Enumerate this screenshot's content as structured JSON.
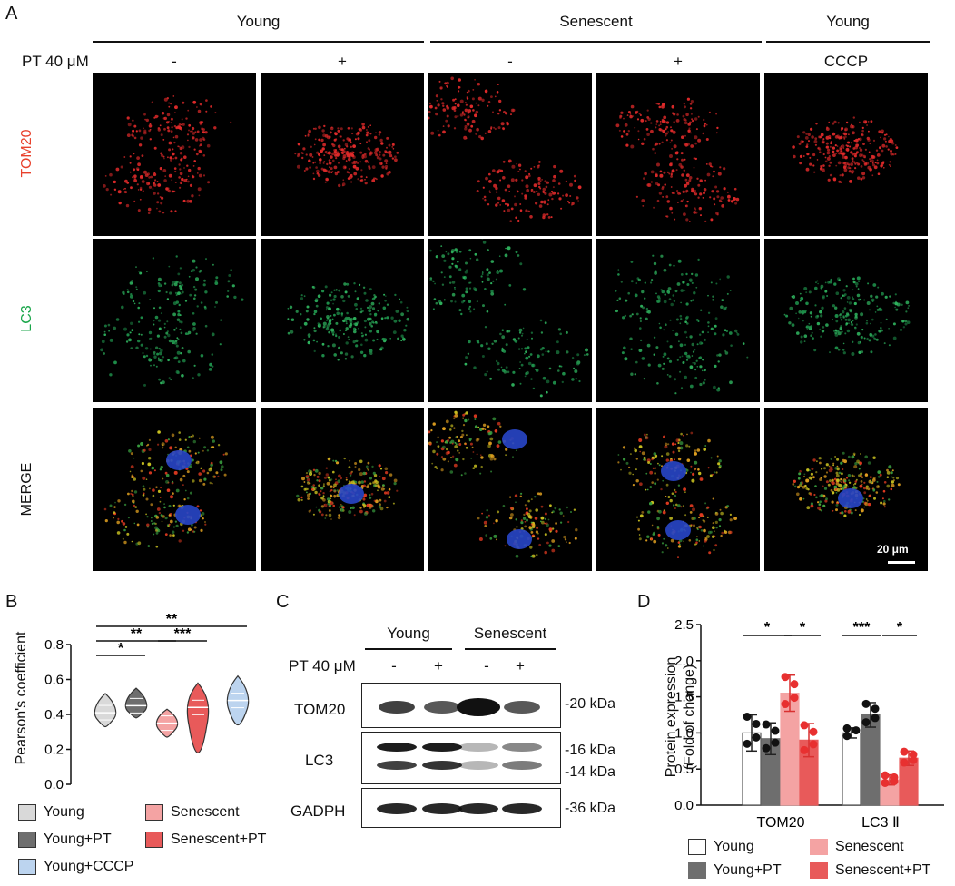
{
  "panelA": {
    "label": "A",
    "groups": [
      {
        "title": "Young"
      },
      {
        "title": "Senescent"
      },
      {
        "title": "Young"
      }
    ],
    "treatment_label": "PT 40 μM",
    "col_marks": [
      "-",
      "+",
      "-",
      "+",
      "CCCP"
    ],
    "row_labels": [
      {
        "text": "TOM20",
        "color": "#e8412c"
      },
      {
        "text": "LC3",
        "color": "#1aa64a"
      },
      {
        "text": "MERGE",
        "color": "#111111"
      }
    ],
    "scale_bar": "20 μm"
  },
  "panelB": {
    "label": "B",
    "ylabel": "Pearson's coefficient",
    "sig": [
      "*",
      "**",
      "***",
      "**"
    ],
    "legend": [
      {
        "name": "Young",
        "color": "#d9d9d9"
      },
      {
        "name": "Senescent",
        "color": "#f4a3a3"
      },
      {
        "name": "Young+PT",
        "color": "#6e6e6e"
      },
      {
        "name": "Senescent+PT",
        "color": "#e85a5a"
      },
      {
        "name": "Young+CCCP",
        "color": "#bcd4ef"
      }
    ]
  },
  "panelC": {
    "label": "C",
    "groups": [
      "Young",
      "Senescent"
    ],
    "treatment_label": "PT 40 μM",
    "lane_marks": [
      "-",
      "+",
      "-",
      "+"
    ],
    "rows": [
      "TOM20",
      "LC3",
      "GADPH"
    ],
    "markers": [
      "-20 kDa",
      "-16 kDa",
      "-14 kDa",
      "-36 kDa"
    ]
  },
  "panelD": {
    "label": "D",
    "ylabel_line1": "Protein expression",
    "ylabel_line2": "(Fold of change)",
    "categories": [
      "TOM20",
      "LC3 Ⅱ"
    ],
    "sig": [
      "*",
      "*",
      "***",
      "*"
    ],
    "legend": [
      {
        "name": "Young",
        "color": "#ffffff"
      },
      {
        "name": "Senescent",
        "color": "#f4a3a3"
      },
      {
        "name": "Young+PT",
        "color": "#6e6e6e"
      },
      {
        "name": "Senescent+PT",
        "color": "#e85a5a"
      }
    ]
  },
  "chart_data": [
    {
      "type": "violin",
      "panel": "B",
      "ylabel": "Pearson's coefficient",
      "ylim": [
        0.0,
        0.8
      ],
      "yticks": [
        "0.0",
        "0.2",
        "0.4",
        "0.6",
        "0.8"
      ],
      "series": [
        {
          "name": "Young",
          "median": 0.41,
          "min": 0.33,
          "max": 0.52,
          "color": "#d9d9d9"
        },
        {
          "name": "Young+PT",
          "median": 0.45,
          "min": 0.38,
          "max": 0.55,
          "color": "#6e6e6e"
        },
        {
          "name": "Senescent",
          "median": 0.35,
          "min": 0.27,
          "max": 0.43,
          "color": "#f4a3a3"
        },
        {
          "name": "Senescent+PT",
          "median": 0.44,
          "min": 0.18,
          "max": 0.58,
          "color": "#e85a5a"
        },
        {
          "name": "Young+CCCP",
          "median": 0.48,
          "min": 0.34,
          "max": 0.62,
          "color": "#bcd4ef"
        }
      ]
    },
    {
      "type": "bar",
      "panel": "D",
      "categories": [
        "TOM20",
        "LC3 Ⅱ"
      ],
      "ylim": [
        0.0,
        2.5
      ],
      "yticks": [
        "0.0",
        "0.5",
        "1.0",
        "1.5",
        "2.0",
        "2.5"
      ],
      "series": [
        {
          "name": "Young",
          "values": [
            1.0,
            1.0
          ],
          "errors": [
            0.25,
            0.07
          ],
          "color": "#ffffff"
        },
        {
          "name": "Young+PT",
          "values": [
            0.92,
            1.25
          ],
          "errors": [
            0.22,
            0.17
          ],
          "color": "#6e6e6e"
        },
        {
          "name": "Senescent",
          "values": [
            1.55,
            0.35
          ],
          "errors": [
            0.25,
            0.07
          ],
          "color": "#f4a3a3"
        },
        {
          "name": "Senescent+PT",
          "values": [
            0.9,
            0.65
          ],
          "errors": [
            0.23,
            0.1
          ],
          "color": "#e85a5a"
        }
      ]
    }
  ]
}
